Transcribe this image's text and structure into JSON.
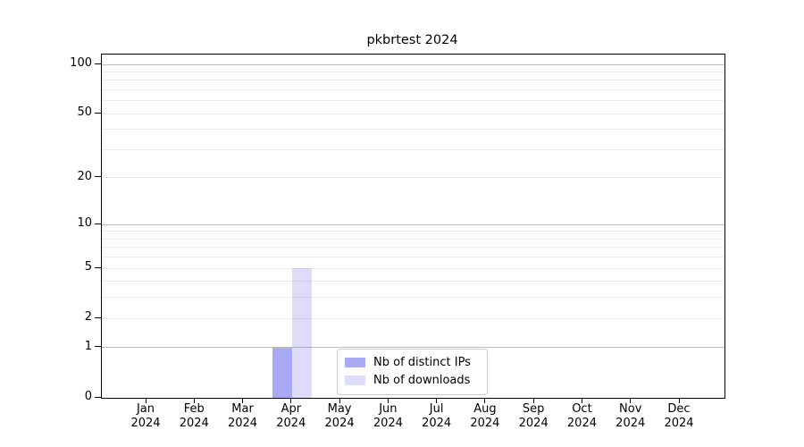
{
  "figure": {
    "background": "#ffffff"
  },
  "chart_data": {
    "type": "bar",
    "title": "pkbrtest 2024",
    "x": {
      "categories": [
        "Jan",
        "Feb",
        "Mar",
        "Apr",
        "May",
        "Jun",
        "Jul",
        "Aug",
        "Sep",
        "Oct",
        "Nov",
        "Dec"
      ],
      "year_line": "2024"
    },
    "series": [
      {
        "name": "Nb of distinct IPs",
        "color": "rgba(85,85,230,0.50)",
        "values": [
          0,
          0,
          0,
          1,
          0,
          0,
          0,
          0,
          0,
          0,
          0,
          0
        ]
      },
      {
        "name": "Nb of downloads",
        "color": "rgba(85,85,230,0.20)",
        "values": [
          0,
          0,
          0,
          5,
          0,
          0,
          0,
          0,
          0,
          0,
          0,
          0
        ]
      }
    ],
    "y_axis": {
      "scale": "log10(value+1)",
      "range": [
        0,
        115
      ],
      "ticks": [
        0,
        1,
        2,
        5,
        10,
        20,
        50,
        100
      ],
      "major_gridlines": [
        1,
        10,
        100
      ],
      "minor_gridlines": [
        2,
        3,
        4,
        5,
        6,
        7,
        8,
        9,
        20,
        30,
        40,
        50,
        60,
        70,
        80,
        90
      ],
      "major_grid_color": "#bdbdbd",
      "minor_grid_color": "#ebebeb"
    },
    "legend": {
      "position": "lower-center",
      "border_color": "#cccccc",
      "entries": [
        "Nb of distinct IPs",
        "Nb of downloads"
      ]
    },
    "bar_layout": {
      "group_width_frac": 0.8,
      "bar_width_frac": 0.4
    }
  }
}
